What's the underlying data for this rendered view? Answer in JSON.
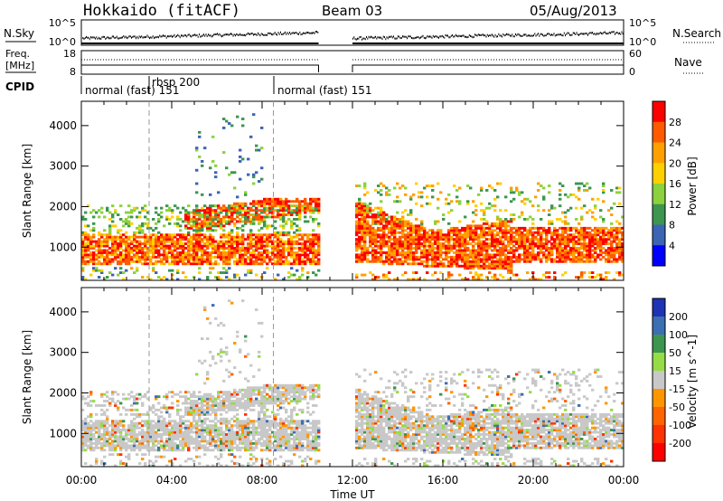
{
  "header": {
    "station": "Hokkaido (fitACF)",
    "beam": "Beam 03",
    "date": "05/Aug/2013"
  },
  "noise_panel": {
    "left_label": "N.Sky",
    "right_label": "N.Search",
    "left_ticks": [
      "10^5",
      "10^0"
    ],
    "right_ticks": [
      "10^5",
      "10^0"
    ]
  },
  "freq_panel": {
    "left_label_1": "Freq.",
    "left_label_2": "[MHz]",
    "right_label": "Nave",
    "left_ticks": [
      "18",
      "8"
    ],
    "right_ticks": [
      "60",
      "0"
    ]
  },
  "cpid_panel": {
    "label": "CPID",
    "segments": [
      {
        "start": 0,
        "text": "normal (fast) 151"
      },
      {
        "start": 3.0,
        "text": "rbsp 200"
      },
      {
        "start": 8.5,
        "text": "normal (fast) 151"
      }
    ]
  },
  "power_colorbar": {
    "title": "Power [dB]",
    "ticks": [
      "28",
      "24",
      "20",
      "16",
      "12",
      "8",
      "4"
    ],
    "colors": [
      "#ff0000",
      "#ff5a00",
      "#ffa000",
      "#ffd000",
      "#8cd23c",
      "#3c9650",
      "#3c64b4",
      "#0000ff"
    ]
  },
  "velocity_colorbar": {
    "title": "Velocity [m s^-1]",
    "ticks": [
      "200",
      "100",
      "50",
      "15",
      "-15",
      "-50",
      "-100",
      "-200"
    ],
    "colors": [
      "#1e32b4",
      "#3c6eb4",
      "#3c9650",
      "#96dc46",
      "#c8c8c8",
      "#ff9600",
      "#ff6400",
      "#ff3200",
      "#ff0000"
    ]
  },
  "chart_data": [
    {
      "type": "heatmap",
      "panel": "power",
      "ylabel": "Slant Range [km]",
      "ylim": [
        180,
        4600
      ],
      "yticks": [
        1000,
        2000,
        3000,
        4000
      ],
      "xlim": [
        0,
        24
      ],
      "data_gap_hours": [
        10.5,
        12.0
      ],
      "dashed_lines_hours": [
        3.0,
        8.5
      ]
    },
    {
      "type": "heatmap",
      "panel": "velocity",
      "xlabel": "Time UT",
      "ylabel": "Slant Range [km]",
      "ylim": [
        180,
        4600
      ],
      "yticks": [
        1000,
        2000,
        3000,
        4000
      ],
      "xlim": [
        0,
        24
      ],
      "xticks": [
        "00:00",
        "04:00",
        "08:00",
        "12:00",
        "16:00",
        "20:00",
        "00:00"
      ],
      "data_gap_hours": [
        10.5,
        12.0
      ],
      "dashed_lines_hours": [
        3.0,
        8.5
      ]
    }
  ]
}
